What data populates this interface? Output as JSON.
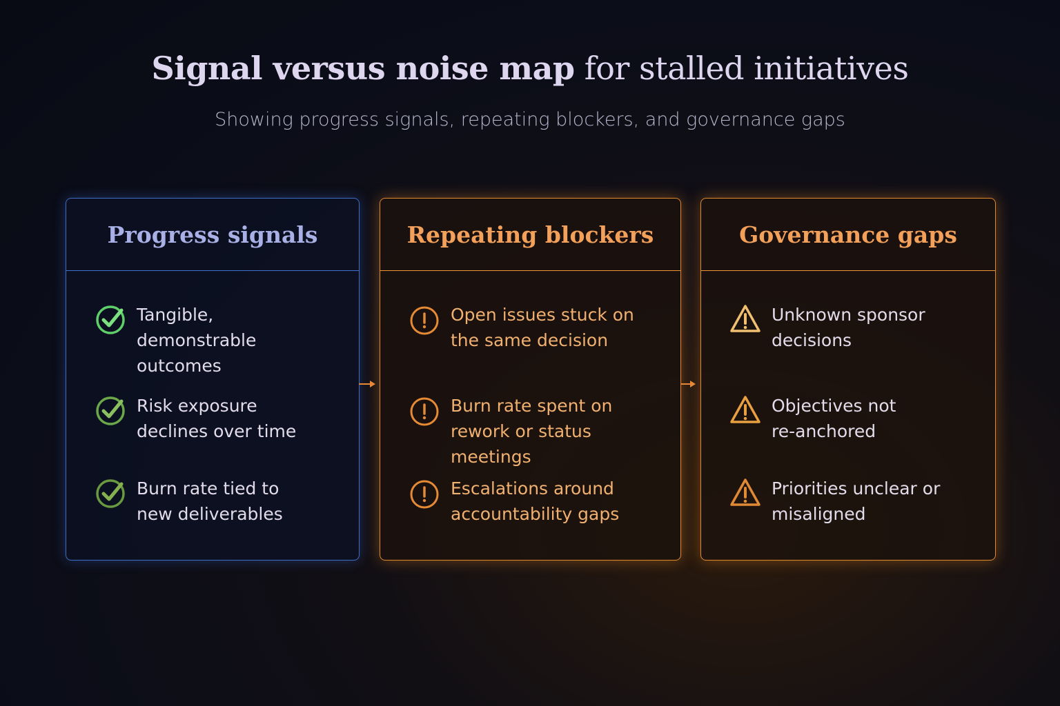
{
  "title": {
    "bold": "Signal versus noise map",
    "regular": "for stalled initiatives"
  },
  "subtitle": "Showing progress signals, repeating blockers, and governance gaps",
  "panels": [
    {
      "heading": "Progress signals",
      "icon": "check-circle-icon",
      "accent": "#5fcf6a",
      "items": [
        "Tangible, demonstrable outcomes",
        "Risk exposure declines over time",
        "Burn rate tied to new deliverables"
      ]
    },
    {
      "heading": "Repeating blockers",
      "icon": "exclamation-circle-icon",
      "accent": "#e58a35",
      "items": [
        "Open issues stuck on the same decision",
        "Burn rate spent on rework or status meetings",
        "Escalations around accountability gaps"
      ]
    },
    {
      "heading": "Governance gaps",
      "icon": "warning-triangle-icon",
      "accent": "#f0c070",
      "items": [
        "Unknown sponsor decisions",
        "Objectives not re-anchored",
        "Priorities unclear or misaligned"
      ]
    }
  ],
  "colors": {
    "blue_border": "#3f6fc4",
    "orange_border": "#e08a2e",
    "blue_heading": "#a9b0e6",
    "orange_heading": "#f2a05a"
  }
}
